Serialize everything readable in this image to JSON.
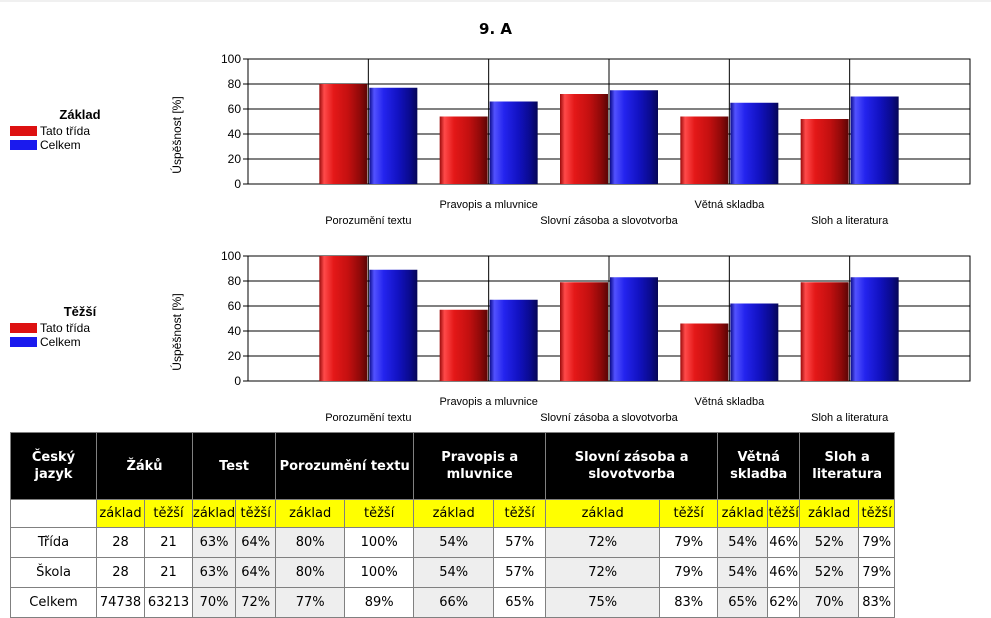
{
  "title": "9. A",
  "colors": {
    "tato": "#dd1111",
    "celkem": "#1a1aee"
  },
  "charts": [
    {
      "legend_title": "Základ",
      "legend": [
        "Tato třída",
        "Celkem"
      ],
      "ylabel": "Úspěšnost [%]",
      "yticks": [
        "100",
        "80",
        "60",
        "40",
        "20",
        "0"
      ]
    },
    {
      "legend_title": "Těžší",
      "legend": [
        "Tato třída",
        "Celkem"
      ],
      "ylabel": "Úspěšnost [%]",
      "yticks": [
        "100",
        "80",
        "60",
        "40",
        "20",
        "0"
      ]
    }
  ],
  "chart_data": [
    {
      "type": "bar",
      "categories": [
        "Porozumění textu",
        "Pravopis a mluvnice",
        "Slovní zásoba a slovotvorba",
        "Větná skladba",
        "Sloh a literatura"
      ],
      "series": [
        {
          "name": "Tato třída",
          "values": [
            80,
            54,
            72,
            54,
            52
          ]
        },
        {
          "name": "Celkem",
          "values": [
            77,
            66,
            75,
            65,
            70
          ]
        }
      ],
      "ylabel": "Úspěšnost [%]",
      "ylim": [
        0,
        100
      ],
      "legend_title": "Základ",
      "grid": true,
      "legend": "left"
    },
    {
      "type": "bar",
      "categories": [
        "Porozumění textu",
        "Pravopis a mluvnice",
        "Slovní zásoba a slovotvorba",
        "Větná skladba",
        "Sloh a literatura"
      ],
      "series": [
        {
          "name": "Tato třída",
          "values": [
            100,
            57,
            79,
            46,
            79
          ]
        },
        {
          "name": "Celkem",
          "values": [
            89,
            65,
            83,
            62,
            83
          ]
        }
      ],
      "ylabel": "Úspěšnost [%]",
      "ylim": [
        0,
        100
      ],
      "legend_title": "Těžší",
      "grid": true,
      "legend": "left"
    }
  ],
  "table": {
    "header": [
      "Český jazyk",
      "Žáků",
      "Test",
      "Porozumění textu",
      "Pravopis a mluvnice",
      "Slovní zásoba a slovotvorba",
      "Větná skladba",
      "Sloh a literatura"
    ],
    "sub": [
      "",
      "základ",
      "těžší",
      "základ",
      "těžší",
      "základ",
      "těžší",
      "základ",
      "těžší",
      "základ",
      "těžší",
      "základ",
      "těžší",
      "základ",
      "těžší"
    ],
    "rows": [
      [
        "Třída",
        "28",
        "21",
        "63%",
        "64%",
        "80%",
        "100%",
        "54%",
        "57%",
        "72%",
        "79%",
        "54%",
        "46%",
        "52%",
        "79%"
      ],
      [
        "Škola",
        "28",
        "21",
        "63%",
        "64%",
        "80%",
        "100%",
        "54%",
        "57%",
        "72%",
        "79%",
        "54%",
        "46%",
        "52%",
        "79%"
      ],
      [
        "Celkem",
        "74738",
        "63213",
        "70%",
        "72%",
        "77%",
        "89%",
        "66%",
        "65%",
        "75%",
        "83%",
        "65%",
        "62%",
        "70%",
        "83%"
      ]
    ]
  }
}
